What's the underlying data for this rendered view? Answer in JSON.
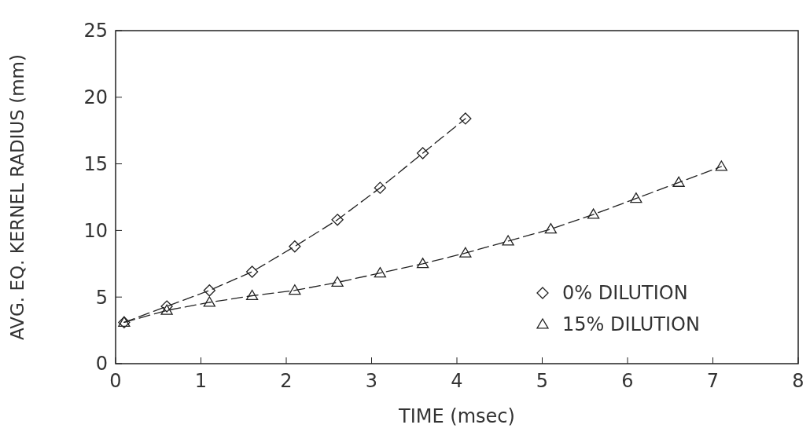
{
  "chart_data": {
    "type": "line",
    "xlabel": "TIME (msec)",
    "ylabel": "AVG. EQ. KERNEL RADIUS (mm)",
    "xlim": [
      0,
      8
    ],
    "ylim": [
      0,
      25
    ],
    "xticks": [
      0,
      1,
      2,
      3,
      4,
      5,
      6,
      7,
      8
    ],
    "yticks": [
      0,
      5,
      10,
      15,
      20,
      25
    ],
    "grid": false,
    "legend": "bottom right",
    "line_style": "dashed",
    "series": [
      {
        "name": "0% DILUTION",
        "color": "#222222",
        "marker": "diamond",
        "x": [
          0.1,
          0.6,
          1.1,
          1.6,
          2.1,
          2.6,
          3.1,
          3.6,
          4.1
        ],
        "values": [
          3.1,
          4.3,
          5.5,
          6.9,
          8.8,
          10.8,
          13.2,
          15.8,
          18.4
        ]
      },
      {
        "name": "15% DILUTION",
        "color": "#222222",
        "marker": "triangle",
        "x": [
          0.1,
          0.6,
          1.1,
          1.6,
          2.1,
          2.6,
          3.1,
          3.6,
          4.1,
          4.6,
          5.1,
          5.6,
          6.1,
          6.6,
          7.1
        ],
        "values": [
          3.1,
          4.0,
          4.6,
          5.1,
          5.5,
          6.1,
          6.8,
          7.5,
          8.3,
          9.2,
          10.1,
          11.2,
          12.4,
          13.6,
          14.8
        ]
      }
    ]
  }
}
